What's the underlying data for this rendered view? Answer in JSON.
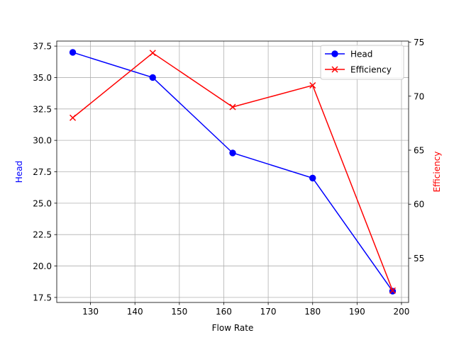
{
  "chart_data": {
    "type": "line",
    "x": [
      126,
      144,
      162,
      180,
      198
    ],
    "xlabel": "Flow Rate",
    "xlim": [
      122.4,
      201.6
    ],
    "xticks": [
      130,
      140,
      150,
      160,
      170,
      180,
      190,
      200
    ],
    "grid": true,
    "legend_position": "top-right",
    "series": [
      {
        "name": "Head",
        "axis": "left",
        "values": [
          37,
          35,
          29,
          27,
          18
        ],
        "color": "#0000ff",
        "marker": "circle"
      },
      {
        "name": "Efficiency",
        "axis": "right",
        "values": [
          68,
          74,
          69,
          71,
          52
        ],
        "color": "#ff0000",
        "marker": "x"
      }
    ],
    "y_left": {
      "label": "Head",
      "label_color": "#0000ff",
      "ylim": [
        17.1,
        37.9
      ],
      "ticks": [
        "17.5",
        "20.0",
        "22.5",
        "25.0",
        "27.5",
        "30.0",
        "32.5",
        "35.0",
        "37.5"
      ]
    },
    "y_right": {
      "label": "Efficiency",
      "label_color": "#ff0000",
      "ylim": [
        50.9,
        75.1
      ],
      "ticks": [
        "55",
        "60",
        "65",
        "70",
        "75"
      ]
    }
  }
}
